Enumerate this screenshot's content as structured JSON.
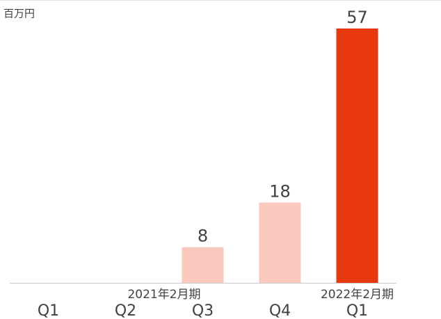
{
  "chart_data": {
    "type": "bar",
    "unit_label": "百万円",
    "categories": [
      "Q1",
      "Q2",
      "Q3",
      "Q4",
      "Q1"
    ],
    "values": [
      null,
      null,
      8,
      18,
      57
    ],
    "colors": [
      "#fac8bc",
      "#fac8bc",
      "#fac8bc",
      "#fac8bc",
      "#e8380d"
    ],
    "groups": [
      {
        "label": "2021年2月期",
        "count": 4
      },
      {
        "label": "2022年2月期",
        "count": 1
      }
    ]
  }
}
